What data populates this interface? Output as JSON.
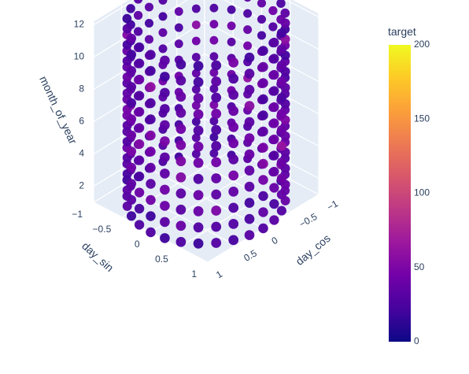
{
  "chart_data": {
    "type": "scatter3d",
    "title": "",
    "axes": {
      "x": {
        "title": "day_cos",
        "range": [
          -1,
          1
        ],
        "ticks": [
          -1,
          -0.5,
          0,
          0.5,
          1
        ],
        "tick_labels": [
          "−1",
          "−0.5",
          "0",
          "0.5",
          "1"
        ]
      },
      "y": {
        "title": "day_sin",
        "range": [
          -1,
          1
        ],
        "ticks": [
          -1,
          -0.5,
          0,
          0.5,
          1
        ],
        "tick_labels": [
          "−1",
          "−0.5",
          "0",
          "0.5",
          "1"
        ]
      },
      "z": {
        "title": "month_of_year",
        "range": [
          1,
          12
        ],
        "ticks": [
          2,
          4,
          6,
          8,
          10,
          12
        ],
        "tick_labels": [
          "2",
          "4",
          "6",
          "8",
          "10",
          "12"
        ]
      }
    },
    "colorbar": {
      "title": "target",
      "range": [
        0,
        200
      ],
      "ticks": [
        0,
        50,
        100,
        150,
        200
      ],
      "tick_labels": [
        "0",
        "50",
        "100",
        "150",
        "200"
      ],
      "colorscale": [
        "#0d0887",
        "#46039f",
        "#7201a8",
        "#9c179e",
        "#bd3786",
        "#d8576b",
        "#ed7953",
        "#fb9f3a",
        "#fdca26",
        "#f0f921"
      ]
    },
    "points": {
      "description_of_grid": "points lie on cylinder day_cos=cos(t), day_sin=sin(t) for several days per month, months 1-12",
      "days_per_ring": 28,
      "months": [
        1,
        2,
        3,
        4,
        5,
        6,
        7,
        8,
        9,
        10,
        11,
        12
      ],
      "target_by_month": [
        28,
        30,
        32,
        34,
        38,
        42,
        40,
        36,
        34,
        32,
        30,
        28
      ]
    },
    "grid": true,
    "legend": "colorbar-right"
  }
}
